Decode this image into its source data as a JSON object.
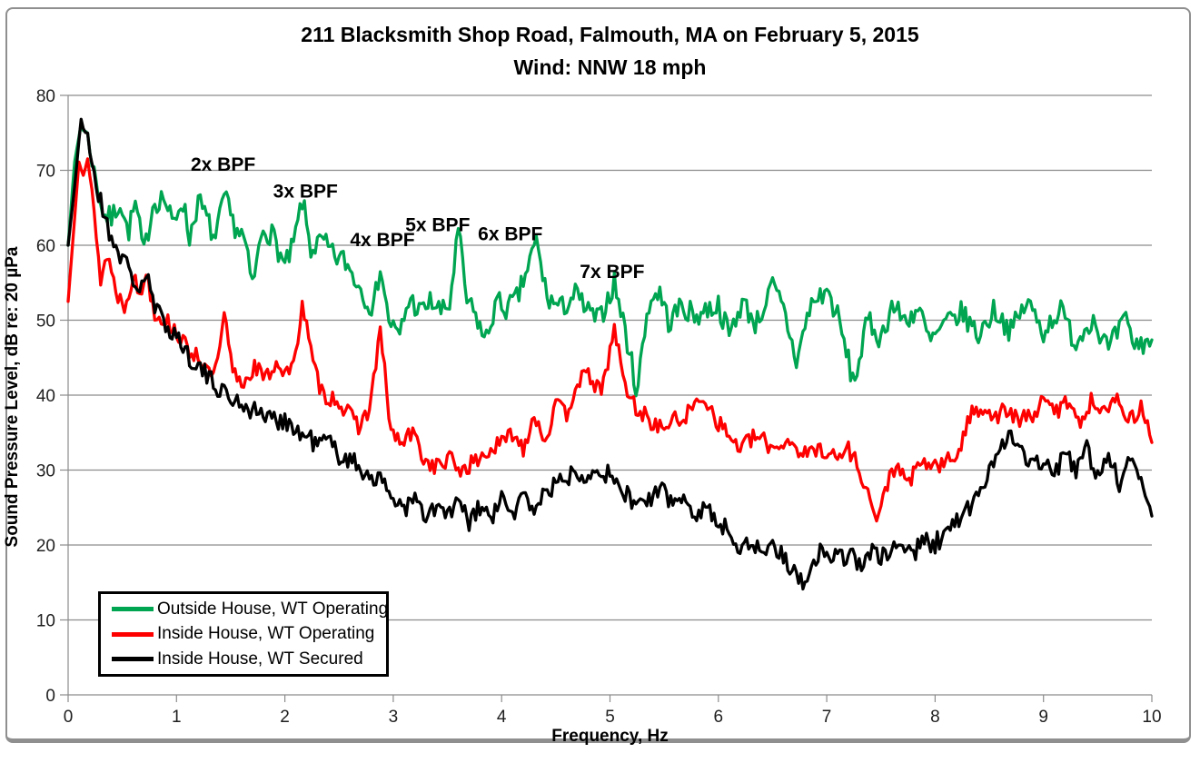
{
  "colors": {
    "grid": "#8c8c8c",
    "axis": "#8c8c8c",
    "frame": "#8f8f8f",
    "tick_text": "#1f1f1f",
    "annotation_text": "#000000"
  },
  "chart_data": {
    "type": "line",
    "title": "211 Blacksmith Shop Road, Falmouth, MA on February 5, 2015",
    "subtitle": "Wind: NNW 18 mph",
    "xlabel": "Frequency, Hz",
    "ylabel": "Sound Pressure Level, dB re: 20 µPa",
    "xlim": [
      0,
      10
    ],
    "ylim": [
      0,
      80
    ],
    "xticks": [
      0,
      1,
      2,
      3,
      4,
      5,
      6,
      7,
      8,
      9,
      10
    ],
    "yticks": [
      0,
      10,
      20,
      30,
      40,
      50,
      60,
      70,
      80
    ],
    "grid": "horizontal",
    "legend_position": "bottom-left",
    "annotations": [
      {
        "label": "2x BPF",
        "x": 1.43,
        "y": 70.8
      },
      {
        "label": "3x BPF",
        "x": 2.19,
        "y": 67.2
      },
      {
        "label": "4x BPF",
        "x": 2.9,
        "y": 60.7
      },
      {
        "label": "5x BPF",
        "x": 3.41,
        "y": 62.7
      },
      {
        "label": "6x BPF",
        "x": 4.08,
        "y": 61.5
      },
      {
        "label": "7x BPF",
        "x": 5.02,
        "y": 56.5
      }
    ],
    "series": [
      {
        "name": "Outside House, WT Operating",
        "color": "#00a551",
        "noise": 1.6,
        "seed": 7,
        "points": [
          [
            0,
            60
          ],
          [
            0.06,
            71
          ],
          [
            0.12,
            76.3
          ],
          [
            0.18,
            74.5
          ],
          [
            0.25,
            69
          ],
          [
            0.33,
            64
          ],
          [
            0.4,
            63.5
          ],
          [
            0.48,
            66
          ],
          [
            0.55,
            61.5
          ],
          [
            0.62,
            65.5
          ],
          [
            0.7,
            58.8
          ],
          [
            0.78,
            65.5
          ],
          [
            0.88,
            66.5
          ],
          [
            0.97,
            62.5
          ],
          [
            1.05,
            66.5
          ],
          [
            1.12,
            61
          ],
          [
            1.2,
            66
          ],
          [
            1.28,
            63.5
          ],
          [
            1.36,
            60.5
          ],
          [
            1.44,
            66.5
          ],
          [
            1.52,
            63
          ],
          [
            1.62,
            61
          ],
          [
            1.7,
            54.5
          ],
          [
            1.8,
            62.5
          ],
          [
            1.9,
            61
          ],
          [
            2.0,
            57
          ],
          [
            2.08,
            60
          ],
          [
            2.16,
            66
          ],
          [
            2.24,
            59.5
          ],
          [
            2.35,
            60.5
          ],
          [
            2.45,
            58.5
          ],
          [
            2.55,
            58
          ],
          [
            2.65,
            55.5
          ],
          [
            2.75,
            53
          ],
          [
            2.82,
            51.5
          ],
          [
            2.88,
            57.5
          ],
          [
            2.95,
            50.5
          ],
          [
            3.05,
            47.5
          ],
          [
            3.15,
            53
          ],
          [
            3.25,
            51
          ],
          [
            3.35,
            52.5
          ],
          [
            3.45,
            51
          ],
          [
            3.52,
            52
          ],
          [
            3.6,
            62
          ],
          [
            3.68,
            52.5
          ],
          [
            3.78,
            50
          ],
          [
            3.85,
            47
          ],
          [
            3.95,
            52.5
          ],
          [
            4.05,
            51.5
          ],
          [
            4.15,
            53
          ],
          [
            4.32,
            60.5
          ],
          [
            4.42,
            53
          ],
          [
            4.55,
            51.5
          ],
          [
            4.68,
            53.5
          ],
          [
            4.8,
            51
          ],
          [
            4.9,
            50
          ],
          [
            5.04,
            55
          ],
          [
            5.12,
            50
          ],
          [
            5.25,
            40.5
          ],
          [
            5.35,
            52
          ],
          [
            5.45,
            54
          ],
          [
            5.55,
            49.5
          ],
          [
            5.65,
            52
          ],
          [
            5.78,
            50.5
          ],
          [
            5.9,
            51.5
          ],
          [
            6.0,
            52
          ],
          [
            6.1,
            48
          ],
          [
            6.22,
            52.5
          ],
          [
            6.35,
            49.5
          ],
          [
            6.5,
            54.5
          ],
          [
            6.6,
            51.5
          ],
          [
            6.72,
            44.5
          ],
          [
            6.85,
            52
          ],
          [
            7.0,
            54
          ],
          [
            7.1,
            50.5
          ],
          [
            7.25,
            41.5
          ],
          [
            7.38,
            50
          ],
          [
            7.5,
            47.5
          ],
          [
            7.6,
            52
          ],
          [
            7.72,
            50
          ],
          [
            7.85,
            51.5
          ],
          [
            7.95,
            47
          ],
          [
            8.1,
            49.5
          ],
          [
            8.25,
            51
          ],
          [
            8.4,
            48
          ],
          [
            8.55,
            51.5
          ],
          [
            8.7,
            48.5
          ],
          [
            8.85,
            52.5
          ],
          [
            9.0,
            48.5
          ],
          [
            9.15,
            51.5
          ],
          [
            9.3,
            47
          ],
          [
            9.45,
            50.5
          ],
          [
            9.6,
            46
          ],
          [
            9.75,
            50
          ],
          [
            9.85,
            46.5
          ],
          [
            10,
            47.5
          ]
        ]
      },
      {
        "name": "Inside House, WT Operating",
        "color": "#fe0000",
        "noise": 1.2,
        "seed": 13,
        "points": [
          [
            0,
            52.5
          ],
          [
            0.05,
            62
          ],
          [
            0.1,
            71.5
          ],
          [
            0.14,
            69.5
          ],
          [
            0.18,
            71
          ],
          [
            0.24,
            65
          ],
          [
            0.3,
            55
          ],
          [
            0.36,
            59
          ],
          [
            0.45,
            53.5
          ],
          [
            0.52,
            52
          ],
          [
            0.6,
            56
          ],
          [
            0.66,
            53
          ],
          [
            0.72,
            56.5
          ],
          [
            0.8,
            51
          ],
          [
            0.9,
            50
          ],
          [
            1.0,
            48.5
          ],
          [
            1.1,
            46
          ],
          [
            1.2,
            45.5
          ],
          [
            1.3,
            42.5
          ],
          [
            1.38,
            44
          ],
          [
            1.44,
            50.5
          ],
          [
            1.52,
            43
          ],
          [
            1.62,
            41.5
          ],
          [
            1.72,
            44
          ],
          [
            1.82,
            42
          ],
          [
            1.92,
            44.5
          ],
          [
            2.0,
            43
          ],
          [
            2.08,
            43.5
          ],
          [
            2.16,
            52.5
          ],
          [
            2.26,
            44
          ],
          [
            2.35,
            40
          ],
          [
            2.48,
            39.5
          ],
          [
            2.58,
            37.5
          ],
          [
            2.68,
            36
          ],
          [
            2.78,
            38
          ],
          [
            2.88,
            48.5
          ],
          [
            2.98,
            35
          ],
          [
            3.08,
            33.5
          ],
          [
            3.18,
            35
          ],
          [
            3.3,
            31
          ],
          [
            3.42,
            30.5
          ],
          [
            3.52,
            31.5
          ],
          [
            3.62,
            30
          ],
          [
            3.75,
            31
          ],
          [
            3.88,
            32.5
          ],
          [
            4.0,
            33.5
          ],
          [
            4.1,
            35
          ],
          [
            4.2,
            33
          ],
          [
            4.3,
            37.5
          ],
          [
            4.4,
            34
          ],
          [
            4.5,
            38.5
          ],
          [
            4.6,
            37.5
          ],
          [
            4.7,
            42
          ],
          [
            4.82,
            42.5
          ],
          [
            4.92,
            40
          ],
          [
            5.04,
            49
          ],
          [
            5.14,
            41
          ],
          [
            5.25,
            38
          ],
          [
            5.35,
            37
          ],
          [
            5.45,
            35.5
          ],
          [
            5.58,
            36.5
          ],
          [
            5.68,
            37
          ],
          [
            5.78,
            38.5
          ],
          [
            5.87,
            40
          ],
          [
            5.97,
            37
          ],
          [
            6.1,
            34.5
          ],
          [
            6.2,
            33
          ],
          [
            6.35,
            34.5
          ],
          [
            6.5,
            33
          ],
          [
            6.65,
            34
          ],
          [
            6.8,
            32
          ],
          [
            6.95,
            33
          ],
          [
            7.1,
            31.5
          ],
          [
            7.2,
            33
          ],
          [
            7.32,
            29.5
          ],
          [
            7.47,
            23
          ],
          [
            7.6,
            30.5
          ],
          [
            7.75,
            28.5
          ],
          [
            7.9,
            31
          ],
          [
            8.05,
            30.5
          ],
          [
            8.2,
            32
          ],
          [
            8.35,
            38
          ],
          [
            8.45,
            38.5
          ],
          [
            8.55,
            37
          ],
          [
            8.65,
            38
          ],
          [
            8.78,
            36.5
          ],
          [
            8.9,
            37.5
          ],
          [
            9.0,
            39
          ],
          [
            9.12,
            38
          ],
          [
            9.25,
            39.5
          ],
          [
            9.35,
            36
          ],
          [
            9.45,
            39.5
          ],
          [
            9.6,
            38
          ],
          [
            9.7,
            39.5
          ],
          [
            9.8,
            36.5
          ],
          [
            9.9,
            38.5
          ],
          [
            10,
            34
          ]
        ]
      },
      {
        "name": "Inside House, WT Secured",
        "color": "#000000",
        "noise": 1.4,
        "seed": 21,
        "points": [
          [
            0,
            60
          ],
          [
            0.06,
            68
          ],
          [
            0.12,
            76.4
          ],
          [
            0.18,
            74.5
          ],
          [
            0.26,
            68
          ],
          [
            0.35,
            63
          ],
          [
            0.45,
            59.5
          ],
          [
            0.55,
            57
          ],
          [
            0.65,
            54
          ],
          [
            0.72,
            56
          ],
          [
            0.8,
            51.5
          ],
          [
            0.9,
            49.5
          ],
          [
            1.0,
            48
          ],
          [
            1.1,
            45.5
          ],
          [
            1.2,
            44
          ],
          [
            1.3,
            42
          ],
          [
            1.4,
            41
          ],
          [
            1.5,
            39.5
          ],
          [
            1.6,
            39
          ],
          [
            1.7,
            38
          ],
          [
            1.8,
            37.5
          ],
          [
            1.9,
            36.5
          ],
          [
            2.0,
            37
          ],
          [
            2.1,
            35
          ],
          [
            2.2,
            34.5
          ],
          [
            2.3,
            33.5
          ],
          [
            2.4,
            34
          ],
          [
            2.5,
            32
          ],
          [
            2.6,
            31.5
          ],
          [
            2.7,
            30
          ],
          [
            2.8,
            29.5
          ],
          [
            2.9,
            28
          ],
          [
            3.0,
            26.5
          ],
          [
            3.1,
            25
          ],
          [
            3.2,
            26
          ],
          [
            3.3,
            23.5
          ],
          [
            3.4,
            25
          ],
          [
            3.5,
            24
          ],
          [
            3.6,
            25.5
          ],
          [
            3.7,
            23
          ],
          [
            3.8,
            25
          ],
          [
            3.9,
            23.5
          ],
          [
            4.0,
            26
          ],
          [
            4.1,
            24
          ],
          [
            4.2,
            26.5
          ],
          [
            4.3,
            25
          ],
          [
            4.4,
            27
          ],
          [
            4.5,
            28
          ],
          [
            4.6,
            29
          ],
          [
            4.7,
            30
          ],
          [
            4.8,
            29.5
          ],
          [
            4.9,
            30.5
          ],
          [
            5.0,
            29
          ],
          [
            5.1,
            27.5
          ],
          [
            5.2,
            26
          ],
          [
            5.3,
            25.5
          ],
          [
            5.4,
            26.5
          ],
          [
            5.5,
            27
          ],
          [
            5.6,
            25.5
          ],
          [
            5.7,
            26
          ],
          [
            5.8,
            24.5
          ],
          [
            5.9,
            25
          ],
          [
            6.0,
            23
          ],
          [
            6.1,
            21.5
          ],
          [
            6.2,
            20
          ],
          [
            6.3,
            20.5
          ],
          [
            6.4,
            19
          ],
          [
            6.5,
            20
          ],
          [
            6.6,
            18.5
          ],
          [
            6.7,
            16.5
          ],
          [
            6.78,
            14.8
          ],
          [
            6.9,
            18.5
          ],
          [
            7.0,
            19.5
          ],
          [
            7.1,
            18
          ],
          [
            7.2,
            19
          ],
          [
            7.3,
            17.5
          ],
          [
            7.4,
            19
          ],
          [
            7.5,
            18
          ],
          [
            7.6,
            19.5
          ],
          [
            7.7,
            20
          ],
          [
            7.8,
            19
          ],
          [
            7.9,
            20.5
          ],
          [
            8.0,
            20
          ],
          [
            8.1,
            22
          ],
          [
            8.2,
            23
          ],
          [
            8.3,
            24.5
          ],
          [
            8.4,
            26.5
          ],
          [
            8.5,
            30
          ],
          [
            8.6,
            33.5
          ],
          [
            8.7,
            35.3
          ],
          [
            8.8,
            32
          ],
          [
            8.9,
            30.5
          ],
          [
            9.0,
            31.5
          ],
          [
            9.1,
            29.5
          ],
          [
            9.2,
            32
          ],
          [
            9.3,
            30
          ],
          [
            9.4,
            33
          ],
          [
            9.5,
            29
          ],
          [
            9.6,
            32.5
          ],
          [
            9.7,
            28
          ],
          [
            9.8,
            31
          ],
          [
            9.9,
            29.5
          ],
          [
            10,
            24
          ]
        ]
      }
    ]
  }
}
